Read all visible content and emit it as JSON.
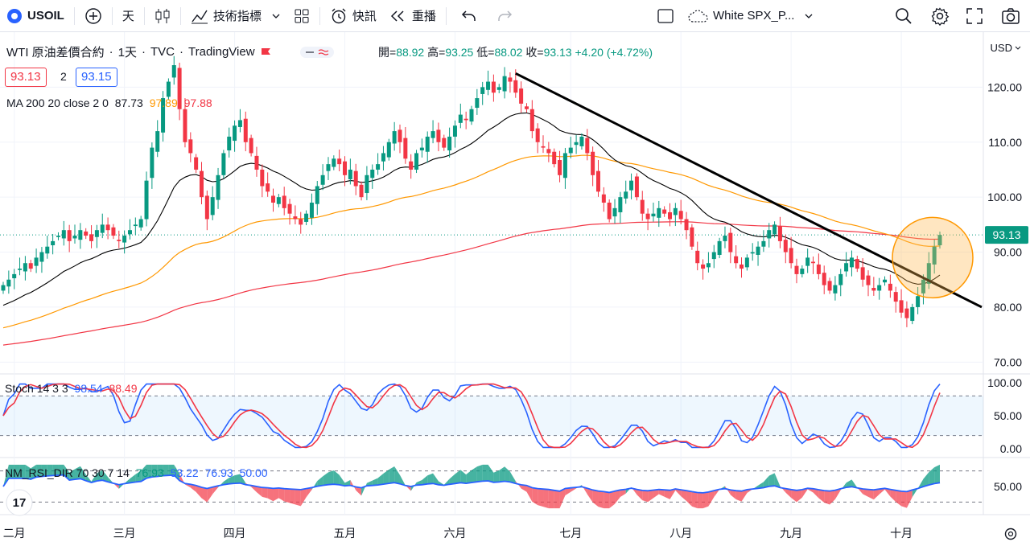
{
  "toolbar": {
    "symbol": "USOIL",
    "interval": "天",
    "indicators": "技術指標",
    "hotkeys": "快訊",
    "replay": "重播",
    "layout_name": "White SPX_P..."
  },
  "legend": {
    "title": "WTI 原油差價合約",
    "interval": "1天",
    "source": "TVC",
    "vendor": "TradingView",
    "ohlc": {
      "open_label": "開=",
      "open": "88.92",
      "high_label": "高=",
      "high": "93.25",
      "low_label": "低=",
      "low": "88.02",
      "close_label": "收=",
      "close": "93.13",
      "change": "+4.20 (+4.72%)"
    },
    "bid": "93.13",
    "spread": "2",
    "ask": "93.15"
  },
  "ma": {
    "label": "MA 200 20 close 2 0",
    "v1": "87.73",
    "v2": "97.89",
    "v3": "97.88"
  },
  "stoch": {
    "label": "Stoch 14 3 3",
    "k": "98.54",
    "d": "88.49"
  },
  "rsi": {
    "label": "NM_RSI_DIR 70 30 7 14",
    "v1": "76.93",
    "v2": "53.22",
    "v3": "76.93",
    "v4": "50.00"
  },
  "price_axis": {
    "currency": "USD",
    "ticks": [
      "120.00",
      "110.00",
      "100.00",
      "90.00",
      "80.00",
      "70.00"
    ],
    "last_price": "93.13"
  },
  "stoch_axis": {
    "ticks": [
      "100.00",
      "50.00",
      "0.00"
    ]
  },
  "rsi_axis": {
    "ticks": [
      "50.00"
    ]
  },
  "time_axis": {
    "months": [
      "二月",
      "三月",
      "四月",
      "五月",
      "六月",
      "七月",
      "八月",
      "九月",
      "十月"
    ]
  },
  "colors": {
    "up": "#089981",
    "down": "#f23645",
    "blue": "#2962ff",
    "ma_black": "#000000",
    "ma_orange": "#ff9800",
    "ma_red": "#f23645"
  },
  "chart_data": {
    "type": "candlestick",
    "closes": [
      84,
      85,
      86,
      87,
      88,
      87,
      89,
      90,
      91,
      92,
      93,
      94,
      92,
      93,
      94,
      93,
      92,
      94,
      95,
      94,
      93,
      92,
      93,
      94,
      95,
      96,
      103,
      109,
      112,
      118,
      121,
      124,
      116,
      110,
      108,
      105,
      100,
      96,
      100,
      104,
      108,
      111,
      113,
      114,
      110,
      108,
      105,
      102,
      101,
      99,
      100,
      98,
      97,
      96,
      95,
      97,
      99,
      102,
      104,
      106,
      107,
      106,
      104,
      105,
      102,
      100,
      104,
      105,
      106,
      108,
      110,
      112,
      110,
      107,
      105,
      108,
      109,
      111,
      112,
      110,
      109,
      111,
      113,
      115,
      114,
      116,
      118,
      120,
      121,
      119,
      120,
      122,
      121,
      119,
      117,
      116,
      112,
      110,
      109,
      108,
      106,
      104,
      108,
      109,
      110,
      111,
      108,
      104,
      101,
      99,
      96,
      98,
      100,
      101,
      103,
      100,
      97,
      96,
      97,
      98,
      97,
      96,
      98,
      96,
      94,
      91,
      88,
      87,
      88,
      90,
      92,
      93,
      90,
      88,
      87,
      89,
      90,
      91,
      92,
      94,
      95,
      92,
      90,
      88,
      86,
      87,
      89,
      88,
      86,
      84,
      83,
      84,
      86,
      88,
      89,
      87,
      85,
      84,
      83,
      84,
      85,
      83,
      81,
      79,
      78,
      80,
      82,
      85,
      88,
      91,
      93.13
    ],
    "price_range": [
      68,
      130
    ],
    "months": [
      "二月",
      "三月",
      "四月",
      "五月",
      "六月",
      "七月",
      "八月",
      "九月",
      "十月"
    ]
  }
}
